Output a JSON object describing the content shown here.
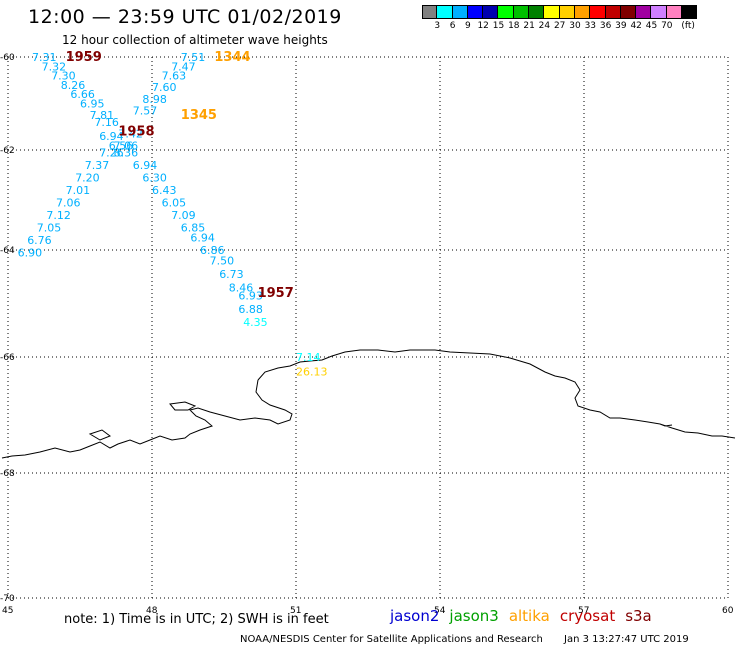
{
  "header": {
    "title": "12:00 — 23:59 UTC 01/02/2019",
    "subtitle": "12 hour collection of altimeter wave heights"
  },
  "color_scale": {
    "colors": [
      "#808080",
      "#00ffff",
      "#00b0ff",
      "#0000ff",
      "#0000b0",
      "#00ff00",
      "#00c000",
      "#008000",
      "#ffff00",
      "#ffd000",
      "#ffa000",
      "#ff0000",
      "#c00000",
      "#800000",
      "#a000a0",
      "#d080ff",
      "#ff80c0",
      "#000000"
    ],
    "tick_labels": [
      "3",
      "6",
      "9",
      "12",
      "15",
      "18",
      "21",
      "24",
      "27",
      "30",
      "33",
      "36",
      "39",
      "42",
      "45",
      "70",
      "(ft)"
    ]
  },
  "map": {
    "lat_labels": [
      "-60",
      "-62",
      "-64",
      "-66",
      "-68",
      "-70"
    ],
    "lon_labels": [
      "45",
      "48",
      "51",
      "54",
      "57",
      "60"
    ],
    "track_labels": [
      {
        "text": "1959",
        "color": "#800000",
        "lon": 46.2,
        "lat": -60.0
      },
      {
        "text": "1344",
        "color": "#ffa000",
        "lon": 49.3,
        "lat": -59.95
      },
      {
        "text": "1345",
        "color": "#ffa000",
        "lon": 48.6,
        "lat": -61.25
      },
      {
        "text": "1958",
        "color": "#800000",
        "lon": 47.3,
        "lat": -61.6
      },
      {
        "text": "1957",
        "color": "#800000",
        "lon": 50.2,
        "lat": -64.8
      }
    ],
    "swh_points": [
      {
        "text": "7.31",
        "color": "#00b0ff",
        "lon": 45.5,
        "lat": -60.0
      },
      {
        "text": "7.32",
        "color": "#00b0ff",
        "lon": 45.7,
        "lat": -60.2
      },
      {
        "text": "7.30",
        "color": "#00b0ff",
        "lon": 45.9,
        "lat": -60.4
      },
      {
        "text": "8.26",
        "color": "#00b0ff",
        "lon": 46.1,
        "lat": -60.6
      },
      {
        "text": "6.66",
        "color": "#00b0ff",
        "lon": 46.3,
        "lat": -60.8
      },
      {
        "text": "6.95",
        "color": "#00b0ff",
        "lon": 46.5,
        "lat": -61.0
      },
      {
        "text": "7.81",
        "color": "#00b0ff",
        "lon": 46.7,
        "lat": -61.25
      },
      {
        "text": "7.16",
        "color": "#00b0ff",
        "lon": 46.8,
        "lat": -61.4
      },
      {
        "text": "6.94",
        "color": "#00b0ff",
        "lon": 46.9,
        "lat": -61.7
      },
      {
        "text": "7.42",
        "color": "#00b0ff",
        "lon": 47.3,
        "lat": -61.65
      },
      {
        "text": "6.56",
        "color": "#00b0ff",
        "lon": 47.1,
        "lat": -61.9
      },
      {
        "text": "7.06",
        "color": "#00b0ff",
        "lon": 47.2,
        "lat": -61.9
      },
      {
        "text": "7.26",
        "color": "#00b0ff",
        "lon": 46.9,
        "lat": -62.05
      },
      {
        "text": "8.36",
        "color": "#00b0ff",
        "lon": 47.2,
        "lat": -62.05
      },
      {
        "text": "7.37",
        "color": "#00b0ff",
        "lon": 46.6,
        "lat": -62.3
      },
      {
        "text": "7.20",
        "color": "#00b0ff",
        "lon": 46.4,
        "lat": -62.55
      },
      {
        "text": "7.01",
        "color": "#00b0ff",
        "lon": 46.2,
        "lat": -62.8
      },
      {
        "text": "7.06",
        "color": "#00b0ff",
        "lon": 46.0,
        "lat": -63.05
      },
      {
        "text": "7.12",
        "color": "#00b0ff",
        "lon": 45.8,
        "lat": -63.3
      },
      {
        "text": "7.05",
        "color": "#00b0ff",
        "lon": 45.6,
        "lat": -63.55
      },
      {
        "text": "6.76",
        "color": "#00b0ff",
        "lon": 45.4,
        "lat": -63.8
      },
      {
        "text": "6.90",
        "color": "#00b0ff",
        "lon": 45.2,
        "lat": -64.05
      },
      {
        "text": "7.51",
        "color": "#00b0ff",
        "lon": 48.6,
        "lat": -59.95
      },
      {
        "text": "7.47",
        "color": "#00b0ff",
        "lon": 48.4,
        "lat": -60.2
      },
      {
        "text": "7.63",
        "color": "#00b0ff",
        "lon": 48.2,
        "lat": -60.4
      },
      {
        "text": "7.60",
        "color": "#00b0ff",
        "lon": 48.0,
        "lat": -60.65
      },
      {
        "text": "8.98",
        "color": "#00b0ff",
        "lon": 47.8,
        "lat": -60.9
      },
      {
        "text": "7.57",
        "color": "#00b0ff",
        "lon": 47.6,
        "lat": -61.15
      },
      {
        "text": "6.94",
        "color": "#00b0ff",
        "lon": 47.6,
        "lat": -62.3
      },
      {
        "text": "6.30",
        "color": "#00b0ff",
        "lon": 47.8,
        "lat": -62.55
      },
      {
        "text": "6.43",
        "color": "#00b0ff",
        "lon": 48.0,
        "lat": -62.8
      },
      {
        "text": "6.05",
        "color": "#00b0ff",
        "lon": 48.2,
        "lat": -63.05
      },
      {
        "text": "7.09",
        "color": "#00b0ff",
        "lon": 48.4,
        "lat": -63.3
      },
      {
        "text": "6.85",
        "color": "#00b0ff",
        "lon": 48.6,
        "lat": -63.55
      },
      {
        "text": "6.94",
        "color": "#00b0ff",
        "lon": 48.8,
        "lat": -63.75
      },
      {
        "text": "6.86",
        "color": "#00b0ff",
        "lon": 49.0,
        "lat": -64.0
      },
      {
        "text": "7.50",
        "color": "#00b0ff",
        "lon": 49.2,
        "lat": -64.2
      },
      {
        "text": "6.73",
        "color": "#00b0ff",
        "lon": 49.4,
        "lat": -64.45
      },
      {
        "text": "8.46",
        "color": "#00b0ff",
        "lon": 49.6,
        "lat": -64.7
      },
      {
        "text": "6.93",
        "color": "#00b0ff",
        "lon": 49.8,
        "lat": -64.85
      },
      {
        "text": "6.88",
        "color": "#00b0ff",
        "lon": 49.8,
        "lat": -65.1
      },
      {
        "text": "4.35",
        "color": "#00ffff",
        "lon": 49.9,
        "lat": -65.35
      },
      {
        "text": "7.14",
        "color": "#00ffff",
        "lon": 51.0,
        "lat": -66.0
      },
      {
        "text": "26.13",
        "color": "#ffd000",
        "lon": 51.0,
        "lat": -66.25
      }
    ]
  },
  "footer": {
    "note": "note:  1) Time is in UTC;  2) SWH is in feet",
    "legend": [
      {
        "text": "jason2",
        "color": "#0000d0"
      },
      {
        "text": "jason3",
        "color": "#00a000"
      },
      {
        "text": "altika",
        "color": "#ffa000"
      },
      {
        "text": "cryosat",
        "color": "#c00000"
      },
      {
        "text": "s3a",
        "color": "#800000"
      }
    ],
    "credit": "NOAA/NESDIS Center for Satellite Applications and Research",
    "timestamp": "Jan  3 13:27:47 UTC 2019"
  }
}
